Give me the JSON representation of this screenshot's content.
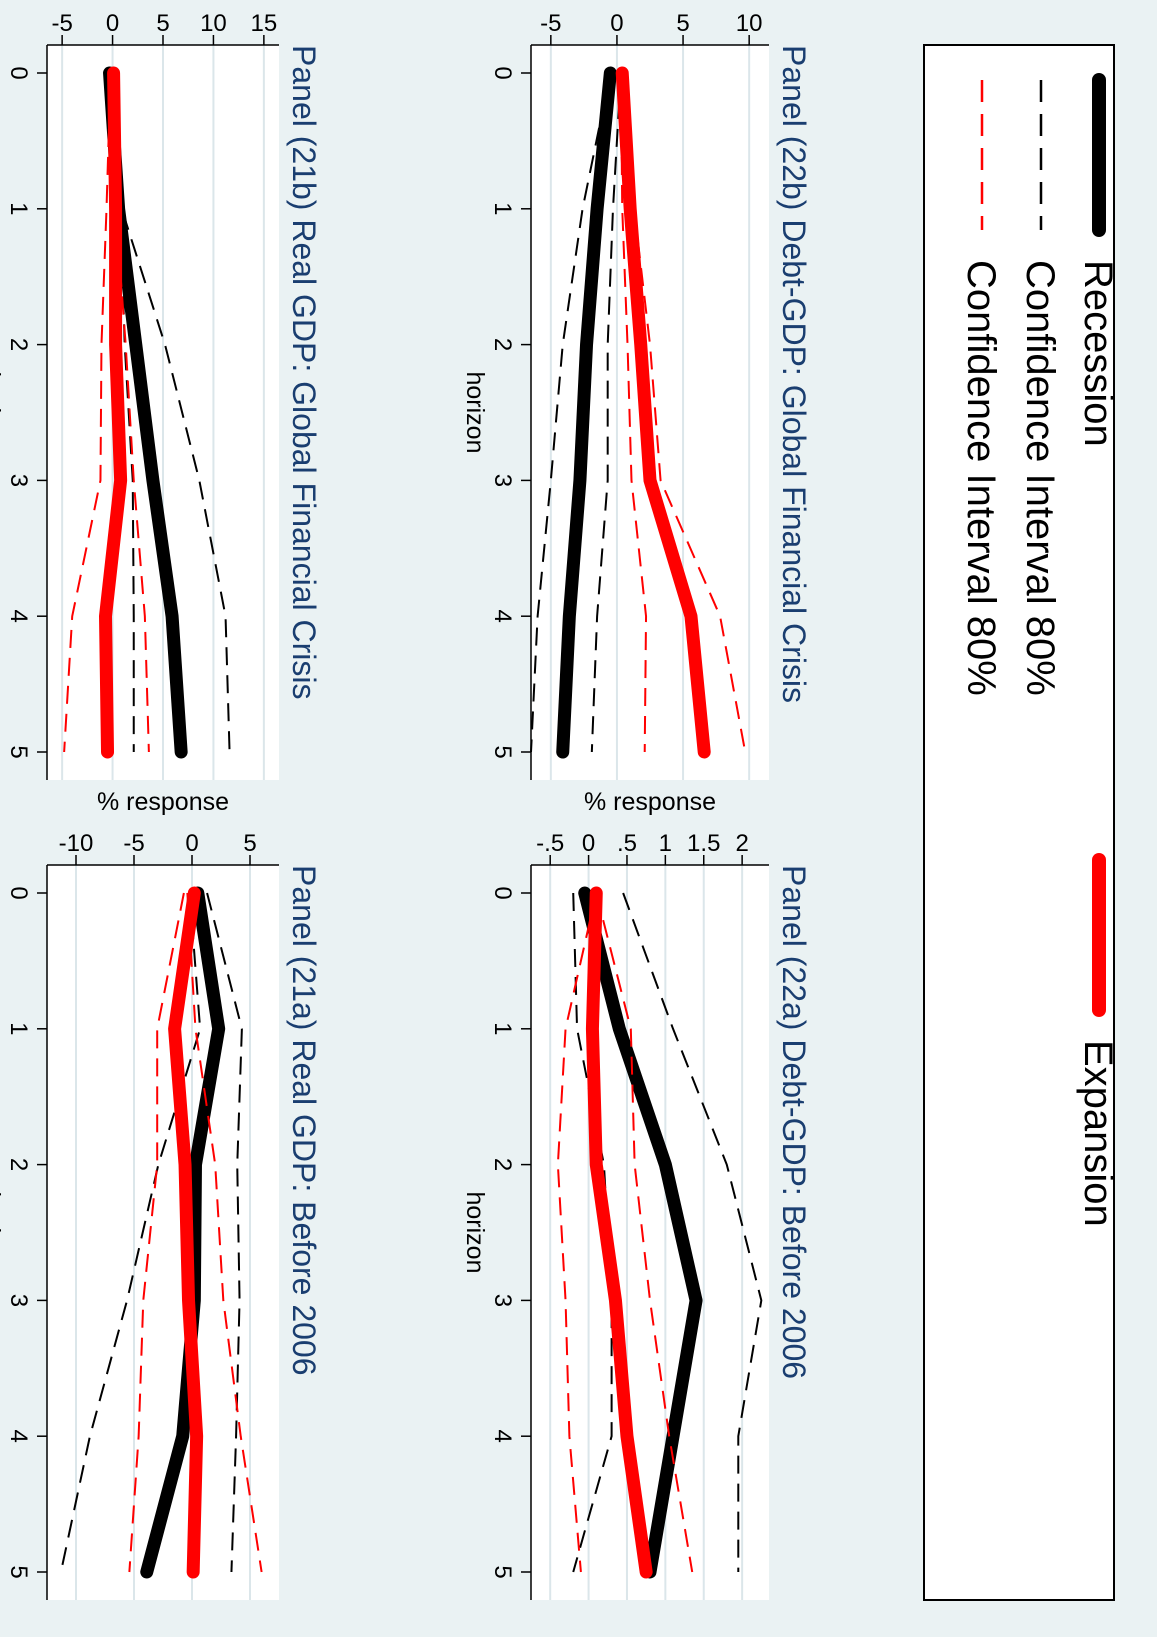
{
  "figure": {
    "background": "#eaf2f3",
    "panel_background": "#ffffff",
    "grid_color": "#dbe6ea",
    "title_color": "#1a3e70"
  },
  "legend": {
    "items": [
      {
        "label": "Recession",
        "color": "#000000",
        "style": "thick"
      },
      {
        "label": "Confidence Interval 80%",
        "color": "#000000",
        "style": "dash"
      },
      {
        "label": "Confidence Interval 80%",
        "color": "#ff0000",
        "style": "dash"
      },
      {
        "label": "Expansion",
        "color": "#ff0000",
        "style": "thick"
      }
    ]
  },
  "chart_data": [
    {
      "type": "line",
      "title": "Panel (21a) Real GDP: Before 2006",
      "xlabel": "horizon",
      "ylabel": "% response",
      "x": [
        0,
        1,
        2,
        3,
        4,
        5
      ],
      "xticks": [
        "0",
        "1",
        "2",
        "3",
        "4",
        "5"
      ],
      "yticks": [
        {
          "v": 5,
          "t": "5"
        },
        {
          "v": 0,
          "t": "0"
        },
        {
          "v": -5,
          "t": "-5"
        },
        {
          "v": -10,
          "t": "-10"
        }
      ],
      "ylim": [
        -12.5,
        7.5
      ],
      "grid": true,
      "series": [
        {
          "name": "Recession",
          "color": "#000000",
          "style": "thick",
          "values": [
            0.5,
            2.3,
            0.3,
            0.2,
            -0.8,
            -3.9
          ]
        },
        {
          "name": "Confidence Interval 80%",
          "color": "#000000",
          "style": "dash",
          "values": [
            1.3,
            4.3,
            3.9,
            4.1,
            3.8,
            3.4
          ]
        },
        {
          "name": "Confidence Interval 80%",
          "color": "#000000",
          "style": "dash",
          "values": [
            -0.2,
            0.7,
            -2.9,
            -5.6,
            -8.8,
            -11.3
          ]
        },
        {
          "name": "Expansion",
          "color": "#ff0000",
          "style": "thick",
          "values": [
            0.2,
            -1.5,
            -0.6,
            -0.3,
            0.4,
            0.1
          ]
        },
        {
          "name": "Confidence Interval 80%",
          "color": "#ff0000",
          "style": "dash",
          "values": [
            -0.4,
            0.3,
            2.0,
            2.7,
            4.2,
            6.0
          ]
        },
        {
          "name": "Confidence Interval 80%",
          "color": "#ff0000",
          "style": "dash",
          "values": [
            -0.7,
            -3.0,
            -3.0,
            -4.2,
            -4.6,
            -5.4
          ]
        }
      ]
    },
    {
      "type": "line",
      "title": "Panel (21b) Real GDP: Global Financial Crisis",
      "xlabel": "horizon",
      "ylabel": "% response",
      "x": [
        0,
        1,
        2,
        3,
        4,
        5
      ],
      "xticks": [
        "0",
        "1",
        "2",
        "3",
        "4",
        "5"
      ],
      "yticks": [
        {
          "v": 15,
          "t": "15"
        },
        {
          "v": 10,
          "t": "10"
        },
        {
          "v": 5,
          "t": "5"
        },
        {
          "v": 0,
          "t": "0"
        },
        {
          "v": -5,
          "t": "-5"
        }
      ],
      "ylim": [
        -6.5,
        16.5
      ],
      "grid": true,
      "series": [
        {
          "name": "Recession",
          "color": "#000000",
          "style": "thick",
          "values": [
            -0.3,
            0.6,
            2.3,
            4.0,
            5.9,
            6.8
          ]
        },
        {
          "name": "Confidence Interval 80%",
          "color": "#000000",
          "style": "dash",
          "values": [
            0.1,
            0.9,
            5.2,
            8.6,
            11.2,
            11.6
          ]
        },
        {
          "name": "Confidence Interval 80%",
          "color": "#000000",
          "style": "dash",
          "values": [
            -0.5,
            0.8,
            1.2,
            2.0,
            2.1,
            2.1
          ]
        },
        {
          "name": "Expansion",
          "color": "#ff0000",
          "style": "thick",
          "values": [
            0.1,
            0.3,
            0.3,
            0.8,
            -0.7,
            -0.5
          ]
        },
        {
          "name": "Confidence Interval 80%",
          "color": "#ff0000",
          "style": "dash",
          "values": [
            0.3,
            0.3,
            1.3,
            2.1,
            3.2,
            3.6
          ]
        },
        {
          "name": "Confidence Interval 80%",
          "color": "#ff0000",
          "style": "dash",
          "values": [
            -0.2,
            -0.6,
            -1.1,
            -1.2,
            -4.0,
            -4.8
          ]
        }
      ]
    },
    {
      "type": "line",
      "title": "Panel (22a) Debt-GDP: Before 2006",
      "xlabel": "horizon",
      "ylabel": "% response",
      "x": [
        0,
        1,
        2,
        3,
        4,
        5
      ],
      "xticks": [
        "0",
        "1",
        "2",
        "3",
        "4",
        "5"
      ],
      "yticks": [
        {
          "v": 2,
          "t": "2"
        },
        {
          "v": 1.5,
          "t": "1.5"
        },
        {
          "v": 1,
          "t": "1"
        },
        {
          "v": 0.5,
          "t": ".5"
        },
        {
          "v": 0,
          "t": "0"
        },
        {
          "v": -0.5,
          "t": "-.5"
        }
      ],
      "ylim": [
        -0.75,
        2.35
      ],
      "grid": true,
      "series": [
        {
          "name": "Recession",
          "color": "#000000",
          "style": "thick",
          "values": [
            -0.05,
            0.4,
            1.0,
            1.4,
            1.1,
            0.8
          ]
        },
        {
          "name": "Confidence Interval 80%",
          "color": "#000000",
          "style": "dash",
          "values": [
            0.45,
            1.1,
            1.8,
            2.25,
            1.95,
            1.95
          ]
        },
        {
          "name": "Confidence Interval 80%",
          "color": "#000000",
          "style": "dash",
          "values": [
            -0.2,
            -0.15,
            0.2,
            0.3,
            0.3,
            -0.2
          ]
        },
        {
          "name": "Expansion",
          "color": "#ff0000",
          "style": "thick",
          "values": [
            0.1,
            0.05,
            0.1,
            0.35,
            0.5,
            0.75
          ]
        },
        {
          "name": "Confidence Interval 80%",
          "color": "#ff0000",
          "style": "dash",
          "values": [
            0.1,
            0.55,
            0.6,
            0.8,
            1.05,
            1.35
          ]
        },
        {
          "name": "Confidence Interval 80%",
          "color": "#ff0000",
          "style": "dash",
          "values": [
            0.1,
            -0.3,
            -0.4,
            -0.3,
            -0.25,
            -0.1
          ]
        }
      ]
    },
    {
      "type": "line",
      "title": "Panel (22b) Debt-GDP: Global Financial Crisis",
      "xlabel": "horizon",
      "ylabel": "% response",
      "x": [
        0,
        1,
        2,
        3,
        4,
        5
      ],
      "xticks": [
        "0",
        "1",
        "2",
        "3",
        "4",
        "5"
      ],
      "yticks": [
        {
          "v": 10,
          "t": "10"
        },
        {
          "v": 5,
          "t": "5"
        },
        {
          "v": 0,
          "t": "0"
        },
        {
          "v": -5,
          "t": "-5"
        }
      ],
      "ylim": [
        -6.5,
        11.5
      ],
      "grid": true,
      "series": [
        {
          "name": "Recession",
          "color": "#000000",
          "style": "thick",
          "values": [
            -0.5,
            -1.5,
            -2.3,
            -2.8,
            -3.6,
            -4.1
          ]
        },
        {
          "name": "Confidence Interval 80%",
          "color": "#000000",
          "style": "dash",
          "values": [
            -0.5,
            -2.6,
            -4.1,
            -5.0,
            -6.0,
            -6.5
          ]
        },
        {
          "name": "Confidence Interval 80%",
          "color": "#000000",
          "style": "dash",
          "values": [
            0.3,
            -0.3,
            -0.7,
            -0.7,
            -1.5,
            -1.9
          ]
        },
        {
          "name": "Expansion",
          "color": "#ff0000",
          "style": "thick",
          "values": [
            0.4,
            1.0,
            1.8,
            2.5,
            5.6,
            6.6
          ]
        },
        {
          "name": "Confidence Interval 80%",
          "color": "#ff0000",
          "style": "dash",
          "values": [
            0.4,
            1.3,
            2.5,
            3.3,
            7.8,
            9.7
          ]
        },
        {
          "name": "Confidence Interval 80%",
          "color": "#ff0000",
          "style": "dash",
          "values": [
            0.3,
            0.4,
            0.8,
            1.1,
            2.2,
            2.1
          ]
        }
      ]
    }
  ]
}
